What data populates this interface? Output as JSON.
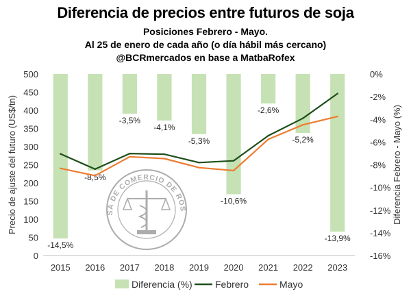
{
  "chart_data": {
    "type": "bar",
    "title": "Diferencia de precios entre futuros de soja",
    "subtitle_lines": [
      "Posiciones Febrero - Mayo.",
      "Al 25 de enero de cada año (o día hábil más cercano)",
      "@BCRmercados en base a MatbaRofex"
    ],
    "categories": [
      "2015",
      "2016",
      "2017",
      "2018",
      "2019",
      "2020",
      "2021",
      "2022",
      "2023"
    ],
    "ylabel": "Precio de ajuste del futuro (US$/tn)",
    "y2label": "Diferencia Febrero - Mayo (%)",
    "ylim": [
      0,
      500
    ],
    "y_ticks": [
      "0",
      "50",
      "100",
      "150",
      "200",
      "250",
      "300",
      "350",
      "400",
      "450",
      "500"
    ],
    "y2lim": [
      -16,
      0
    ],
    "y2_ticks": [
      "0%",
      "-2%",
      "-4%",
      "-6%",
      "-8%",
      "-10%",
      "-12%",
      "-14%",
      "-16%"
    ],
    "series": [
      {
        "name": "Diferencia (%)",
        "type": "bar",
        "axis": "right",
        "color": "#c6e2b5",
        "values": [
          -14.5,
          -8.5,
          -3.5,
          -4.1,
          -5.3,
          -10.6,
          -2.6,
          -5.2,
          -13.9
        ],
        "labels": [
          "-14,5%",
          "-8,5%",
          "-3,5%",
          "-4,1%",
          "-5,3%",
          "-10,6%",
          "-2,6%",
          "-5,2%",
          "-13,9%"
        ]
      },
      {
        "name": "Febrero",
        "type": "line",
        "axis": "left",
        "color": "#1f4e1a",
        "values": [
          280,
          238,
          281,
          279,
          256,
          261,
          330,
          378,
          446
        ]
      },
      {
        "name": "Mayo",
        "type": "line",
        "axis": "left",
        "color": "#ed7d31",
        "values": [
          240,
          220,
          272,
          267,
          242,
          234,
          320,
          360,
          383
        ]
      }
    ],
    "legend_position": "bottom",
    "grid": false,
    "watermark": "BOLSA DE COMERCIO DE ROSARIO"
  }
}
